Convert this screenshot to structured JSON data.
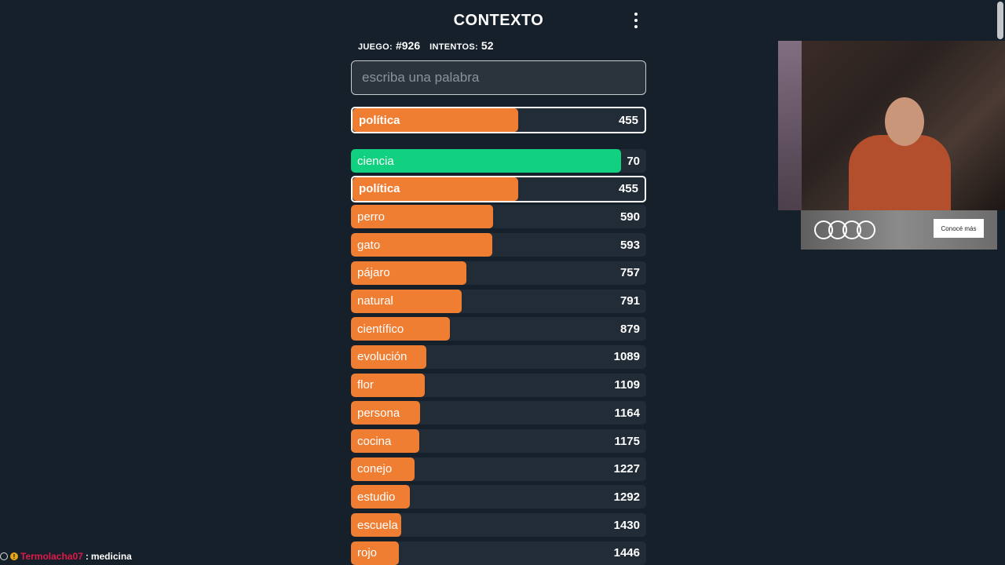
{
  "header": {
    "title": "CONTEXTO",
    "menu_icon": "kebab-menu-icon"
  },
  "stats": {
    "game_label": "JUEGO:",
    "game_value": "#926",
    "attempts_label": "INTENTOS:",
    "attempts_value": "52"
  },
  "search": {
    "placeholder": "escriba una palabra",
    "value": ""
  },
  "last_guess": {
    "word": "política",
    "rank": "455",
    "fill": 0.566,
    "color": "#ef7d32"
  },
  "guesses": [
    {
      "word": "ciencia",
      "rank": "70",
      "fill": 0.916,
      "color": "#11d07f",
      "highlight": false
    },
    {
      "word": "política",
      "rank": "455",
      "fill": 0.566,
      "color": "#ef7d32",
      "highlight": true
    },
    {
      "word": "perro",
      "rank": "590",
      "fill": 0.481,
      "color": "#ef7d32",
      "highlight": false
    },
    {
      "word": "gato",
      "rank": "593",
      "fill": 0.479,
      "color": "#ef7d32",
      "highlight": false
    },
    {
      "word": "pájaro",
      "rank": "757",
      "fill": 0.39,
      "color": "#ef7d32",
      "highlight": false
    },
    {
      "word": "natural",
      "rank": "791",
      "fill": 0.374,
      "color": "#ef7d32",
      "highlight": false
    },
    {
      "word": "científico",
      "rank": "879",
      "fill": 0.334,
      "color": "#ef7d32",
      "highlight": false
    },
    {
      "word": "evolución",
      "rank": "1089",
      "fill": 0.256,
      "color": "#ef7d32",
      "highlight": false
    },
    {
      "word": "flor",
      "rank": "1109",
      "fill": 0.25,
      "color": "#ef7d32",
      "highlight": false
    },
    {
      "word": "persona",
      "rank": "1164",
      "fill": 0.234,
      "color": "#ef7d32",
      "highlight": false
    },
    {
      "word": "cocina",
      "rank": "1175",
      "fill": 0.231,
      "color": "#ef7d32",
      "highlight": false
    },
    {
      "word": "conejo",
      "rank": "1227",
      "fill": 0.215,
      "color": "#ef7d32",
      "highlight": false
    },
    {
      "word": "estudio",
      "rank": "1292",
      "fill": 0.199,
      "color": "#ef7d32",
      "highlight": false
    },
    {
      "word": "escuela",
      "rank": "1430",
      "fill": 0.17,
      "color": "#ef7d32",
      "highlight": false
    },
    {
      "word": "rojo",
      "rank": "1446",
      "fill": 0.162,
      "color": "#ef7d32",
      "highlight": false
    }
  ],
  "ad": {
    "button_label": "Conocé más",
    "logo": "audi-rings-logo"
  },
  "chat": {
    "username": "Termolacha07",
    "separator": ":",
    "message": "medicina"
  }
}
